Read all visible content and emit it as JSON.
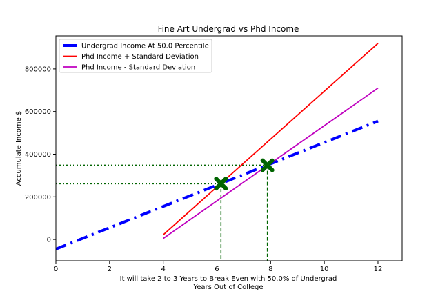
{
  "chart_data": {
    "type": "line",
    "title": "Fine Art Undergrad vs Phd Income",
    "xlabel_line1": "It will take 2 to 3 Years to Break Even with 50.0% of Undergrad",
    "xlabel_line2": "Years Out of College",
    "ylabel": "Accumulate Income $",
    "xlim": [
      0,
      12.9
    ],
    "ylim": [
      -100000,
      955000
    ],
    "xticks": [
      0,
      2,
      4,
      6,
      8,
      10,
      12
    ],
    "yticks": [
      0,
      200000,
      400000,
      600000,
      800000
    ],
    "grid": false,
    "legend_position": "top-left",
    "series": [
      {
        "name": "Undergrad Income At 50.0 Percentile",
        "color": "#0000ff",
        "style": "dashdot",
        "x": [
          0,
          12
        ],
        "y": [
          -45000,
          555000
        ]
      },
      {
        "name": "Phd Income + Standard Deviation",
        "color": "#ff0000",
        "style": "solid",
        "x": [
          4,
          12
        ],
        "y": [
          22000,
          920000
        ]
      },
      {
        "name": "Phd Income - Standard Deviation",
        "color": "#bf00bf",
        "style": "solid",
        "x": [
          4,
          12
        ],
        "y": [
          5000,
          710000
        ]
      }
    ],
    "break_even_points": [
      {
        "x": 6.15,
        "y": 262000
      },
      {
        "x": 7.88,
        "y": 348000
      }
    ],
    "marker_color": "#006400"
  }
}
